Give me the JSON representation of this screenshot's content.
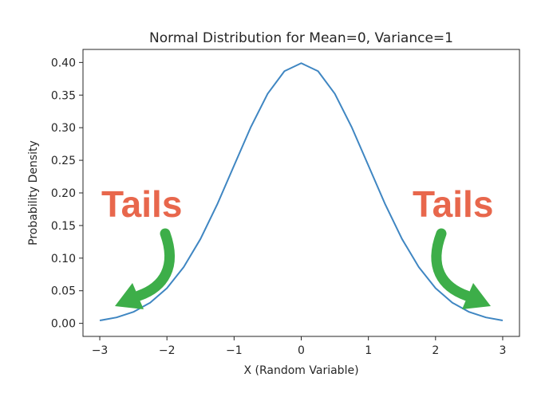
{
  "chart_data": {
    "type": "line",
    "title": "Normal Distribution for Mean=0, Variance=1",
    "xlabel": "X (Random Variable)",
    "ylabel": "Probability Density",
    "xlim": [
      -3.25,
      3.25
    ],
    "ylim": [
      -0.02,
      0.42
    ],
    "grid": false,
    "xticks": [
      -3,
      -2,
      -1,
      0,
      1,
      2,
      3
    ],
    "xtick_labels": [
      "−3",
      "−2",
      "−1",
      "0",
      "1",
      "2",
      "3"
    ],
    "yticks": [
      0.0,
      0.05,
      0.1,
      0.15,
      0.2,
      0.25,
      0.3,
      0.35,
      0.4
    ],
    "ytick_labels": [
      "0.00",
      "0.05",
      "0.10",
      "0.15",
      "0.20",
      "0.25",
      "0.30",
      "0.35",
      "0.40"
    ],
    "series": [
      {
        "color": "#3f86c2",
        "x": [
          -3.0,
          -2.75,
          -2.5,
          -2.25,
          -2.0,
          -1.75,
          -1.5,
          -1.25,
          -1.0,
          -0.75,
          -0.5,
          -0.25,
          0.0,
          0.25,
          0.5,
          0.75,
          1.0,
          1.25,
          1.5,
          1.75,
          2.0,
          2.25,
          2.5,
          2.75,
          3.0
        ],
        "y": [
          0.0044,
          0.0091,
          0.0175,
          0.0317,
          0.054,
          0.0863,
          0.1295,
          0.1826,
          0.242,
          0.3011,
          0.3521,
          0.3867,
          0.3989,
          0.3867,
          0.3521,
          0.3011,
          0.242,
          0.1826,
          0.1295,
          0.0863,
          0.054,
          0.0317,
          0.0175,
          0.0091,
          0.0044
        ]
      }
    ],
    "annotations": [
      {
        "text": "Tails",
        "color": "#e8674c",
        "side": "left"
      },
      {
        "text": "Tails",
        "color": "#e8674c",
        "side": "right"
      }
    ],
    "arrow_color": "#3dae49"
  }
}
